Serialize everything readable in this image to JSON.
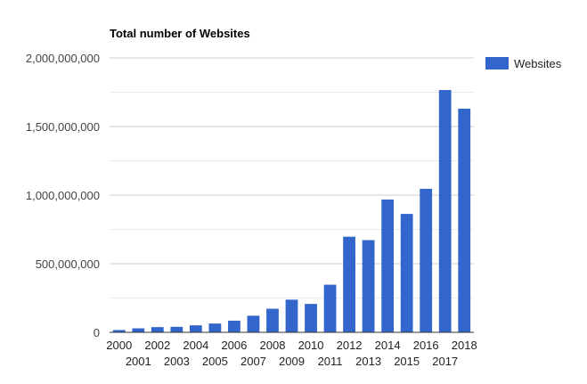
{
  "chart_data": {
    "type": "bar",
    "title": "Total number of Websites",
    "xlabel": "",
    "ylabel": "",
    "categories": [
      "2000",
      "2001",
      "2002",
      "2003",
      "2004",
      "2005",
      "2006",
      "2007",
      "2008",
      "2009",
      "2010",
      "2011",
      "2012",
      "2013",
      "2014",
      "2015",
      "2016",
      "2017",
      "2018"
    ],
    "series": [
      {
        "name": "Websites",
        "color": "#3366cc",
        "values": [
          17000000,
          29000000,
          38000000,
          40000000,
          51000000,
          64000000,
          85000000,
          121000000,
          172000000,
          238000000,
          207000000,
          347000000,
          697000000,
          672000000,
          968000000,
          863000000,
          1046000000,
          1766000000,
          1630000000
        ]
      }
    ],
    "ylim": [
      0,
      2000000000
    ],
    "yticks": [
      0,
      500000000,
      1000000000,
      1500000000,
      2000000000
    ],
    "ytick_labels": [
      "0",
      "500,000,000",
      "1,000,000,000",
      "1,500,000,000",
      "2,000,000,000"
    ],
    "grid": true,
    "legend_position": "right"
  }
}
